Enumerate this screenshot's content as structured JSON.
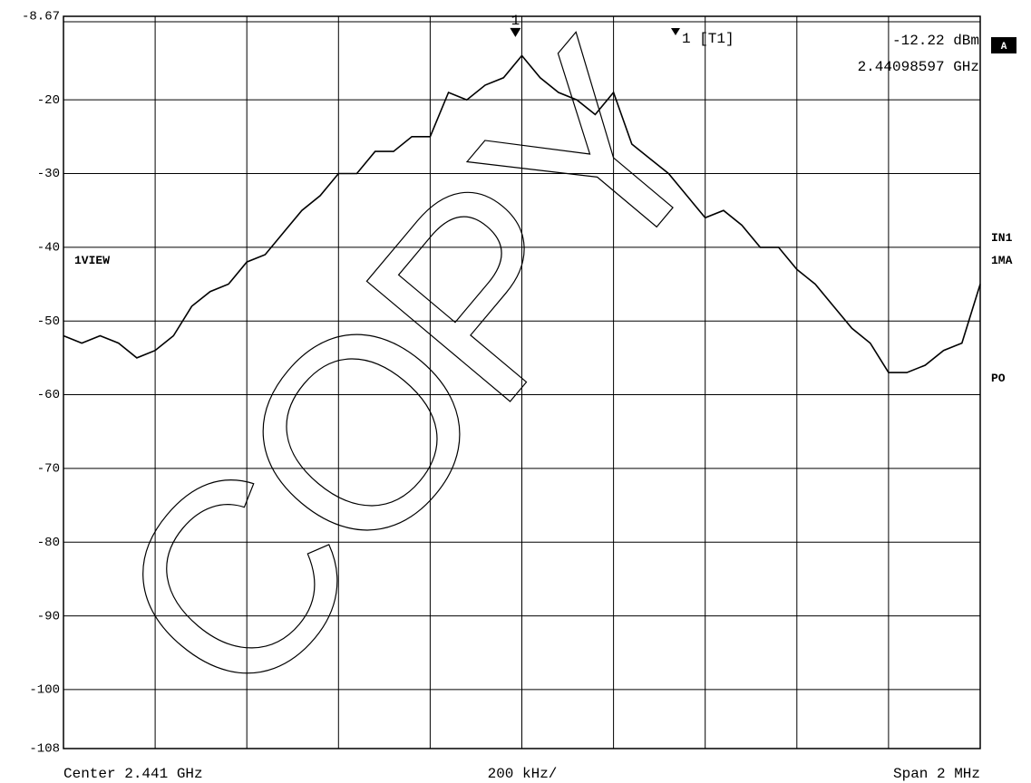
{
  "chart_data": {
    "type": "line",
    "ylim": [
      -108,
      -8.67
    ],
    "yticks": [
      -108,
      -100,
      -90,
      -80,
      -70,
      -60,
      -50,
      -40,
      -30,
      -20,
      -8.67
    ],
    "xlim": [
      2.44,
      2.442
    ],
    "grid": true,
    "color": "#000000",
    "x_labels": {
      "center": "Center 2.441 GHz",
      "division": "200 kHz/",
      "span": "Span 2 MHz"
    },
    "series": [
      {
        "name": "1VIEW",
        "color": "#000000",
        "values": [
          -52,
          -53,
          -52,
          -53,
          -55,
          -54,
          -52,
          -48,
          -46,
          -45,
          -42,
          -41,
          -38,
          -35,
          -33,
          -30,
          -30,
          -27,
          -27,
          -25,
          -25,
          -19,
          -20,
          -18,
          -17,
          -14,
          -17,
          -19,
          -20,
          -22,
          -19,
          -26,
          -28,
          -30,
          -33,
          -36,
          -35,
          -37,
          -40,
          -40,
          -43,
          -45,
          -48,
          -51,
          -53,
          -57,
          -57,
          -56,
          -54,
          -53,
          -45
        ]
      }
    ],
    "marker": {
      "label": "1",
      "name": "1 [T1]",
      "value": -12.22,
      "value_label": "-12.22 dBm",
      "frequency": 2.44098597,
      "frequency_label": "2.44098597 GHz"
    },
    "side_labels": {
      "top": "A",
      "trace": "IN1",
      "mode": "1MA",
      "pos": "PO"
    },
    "watermark": "COPY"
  }
}
